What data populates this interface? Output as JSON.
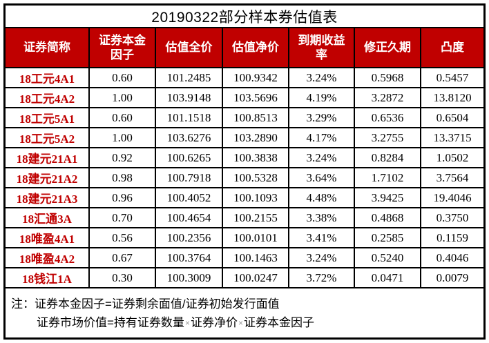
{
  "title": "20190322部分样本券估值表",
  "colors": {
    "header_background": "#C00000",
    "header_text": "#FFFFFF",
    "row_label_text": "#C00000",
    "border": "#000000",
    "multiply_sign": "#999999"
  },
  "table": {
    "columns": [
      "证券简称",
      "证券本金因子",
      "估值全价",
      "估值净价",
      "到期收益率",
      "修正久期",
      "凸度"
    ],
    "rows": [
      {
        "name": "18工元4A1",
        "factor": "0.60",
        "full_price": "101.2485",
        "net_price": "100.9342",
        "ytm": "3.24%",
        "duration": "0.5968",
        "convexity": "0.5457"
      },
      {
        "name": "18工元4A2",
        "factor": "1.00",
        "full_price": "103.9148",
        "net_price": "103.5696",
        "ytm": "4.19%",
        "duration": "3.2872",
        "convexity": "13.8120"
      },
      {
        "name": "18工元5A1",
        "factor": "0.60",
        "full_price": "101.1518",
        "net_price": "100.8513",
        "ytm": "3.29%",
        "duration": "0.6536",
        "convexity": "0.6504"
      },
      {
        "name": "18工元5A2",
        "factor": "1.00",
        "full_price": "103.6276",
        "net_price": "103.2890",
        "ytm": "4.17%",
        "duration": "3.2755",
        "convexity": "13.3715"
      },
      {
        "name": "18建元21A1",
        "factor": "0.92",
        "full_price": "100.6265",
        "net_price": "100.3838",
        "ytm": "3.24%",
        "duration": "0.8284",
        "convexity": "1.0502"
      },
      {
        "name": "18建元21A2",
        "factor": "0.98",
        "full_price": "100.7918",
        "net_price": "100.5328",
        "ytm": "3.64%",
        "duration": "1.7102",
        "convexity": "3.7564"
      },
      {
        "name": "18建元21A3",
        "factor": "0.96",
        "full_price": "100.4052",
        "net_price": "100.1093",
        "ytm": "4.48%",
        "duration": "3.9425",
        "convexity": "19.4046"
      },
      {
        "name": "18汇通3A",
        "factor": "0.70",
        "full_price": "100.4654",
        "net_price": "100.2155",
        "ytm": "3.38%",
        "duration": "0.4868",
        "convexity": "0.3750"
      },
      {
        "name": "18唯盈4A1",
        "factor": "0.56",
        "full_price": "100.2356",
        "net_price": "100.0101",
        "ytm": "3.41%",
        "duration": "0.2585",
        "convexity": "0.1159"
      },
      {
        "name": "18唯盈4A2",
        "factor": "0.67",
        "full_price": "100.3764",
        "net_price": "100.1463",
        "ytm": "3.24%",
        "duration": "0.5240",
        "convexity": "0.4046"
      },
      {
        "name": "18钱江1A",
        "factor": "0.30",
        "full_price": "100.3009",
        "net_price": "100.0247",
        "ytm": "3.72%",
        "duration": "0.0471",
        "convexity": "0.0079"
      }
    ]
  },
  "notes": {
    "prefix": "注：",
    "line1": "证券本金因子=证券剩余面值/证券初始发行面值",
    "multiply": "×",
    "line2_segment1": "证券市场价值=持有证券数量",
    "line2_segment2": "证券净价",
    "line2_segment3": "证券本金因子"
  }
}
